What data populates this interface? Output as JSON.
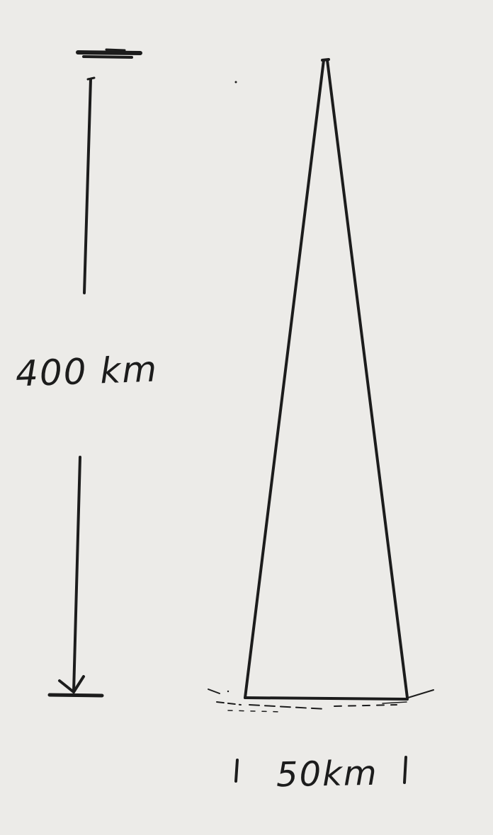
{
  "labels": {
    "height": "400 km",
    "width": "50km"
  }
}
